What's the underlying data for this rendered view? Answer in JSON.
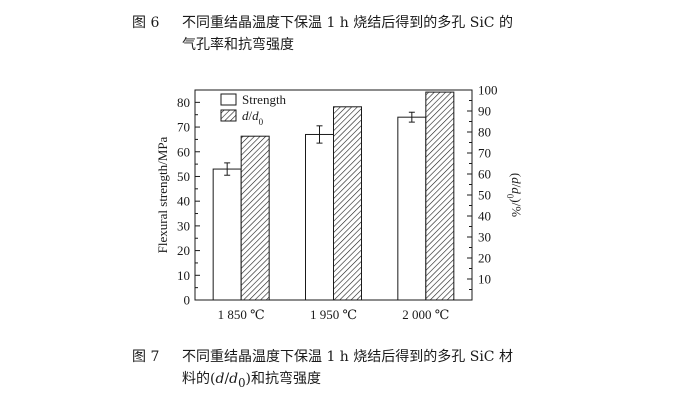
{
  "fig6": {
    "number": "图 6",
    "line1": "不同重结晶温度下保温 1 h 烧结后得到的多孔 SiC 的",
    "line2": "气孔率和抗弯强度"
  },
  "fig7": {
    "number": "图 7",
    "line1": "不同重结晶温度下保温 1 h 烧结后得到的多孔 SiC 材",
    "line2_prefix": "料的(",
    "line2_d": "d",
    "line2_slash": "/",
    "line2_d0": "d",
    "line2_sub": "0",
    "line2_suffix": ")和抗弯强度"
  },
  "colors": {
    "strength_fill": "#ffffff",
    "ratio_fill": "hatched",
    "stroke": "#1a1a1a"
  },
  "chart_data": {
    "type": "bar",
    "categories": [
      "1 850 ℃",
      "1 950 ℃",
      "2 000 ℃"
    ],
    "series": [
      {
        "name": "Strength",
        "axis": "left",
        "values": [
          53,
          67,
          74
        ],
        "errors": [
          2.5,
          3.5,
          2.0
        ],
        "pattern": "open"
      },
      {
        "name_parts": [
          "d",
          "/",
          "d",
          "0"
        ],
        "axis": "right",
        "values": [
          78,
          92,
          99
        ],
        "pattern": "hatched"
      }
    ],
    "y_left": {
      "label": "Flexural strength/MPa",
      "lim": [
        0,
        85
      ],
      "ticks": [
        0,
        10,
        20,
        30,
        40,
        50,
        60,
        70,
        80
      ]
    },
    "y_right": {
      "label_parts": [
        "(",
        "d",
        "/",
        "d",
        "0",
        ")/%"
      ],
      "lim": [
        0,
        100
      ],
      "ticks": [
        10,
        20,
        30,
        40,
        50,
        60,
        70,
        80,
        90,
        100
      ]
    },
    "legend": {
      "placement": "top-left"
    },
    "grid": false
  }
}
